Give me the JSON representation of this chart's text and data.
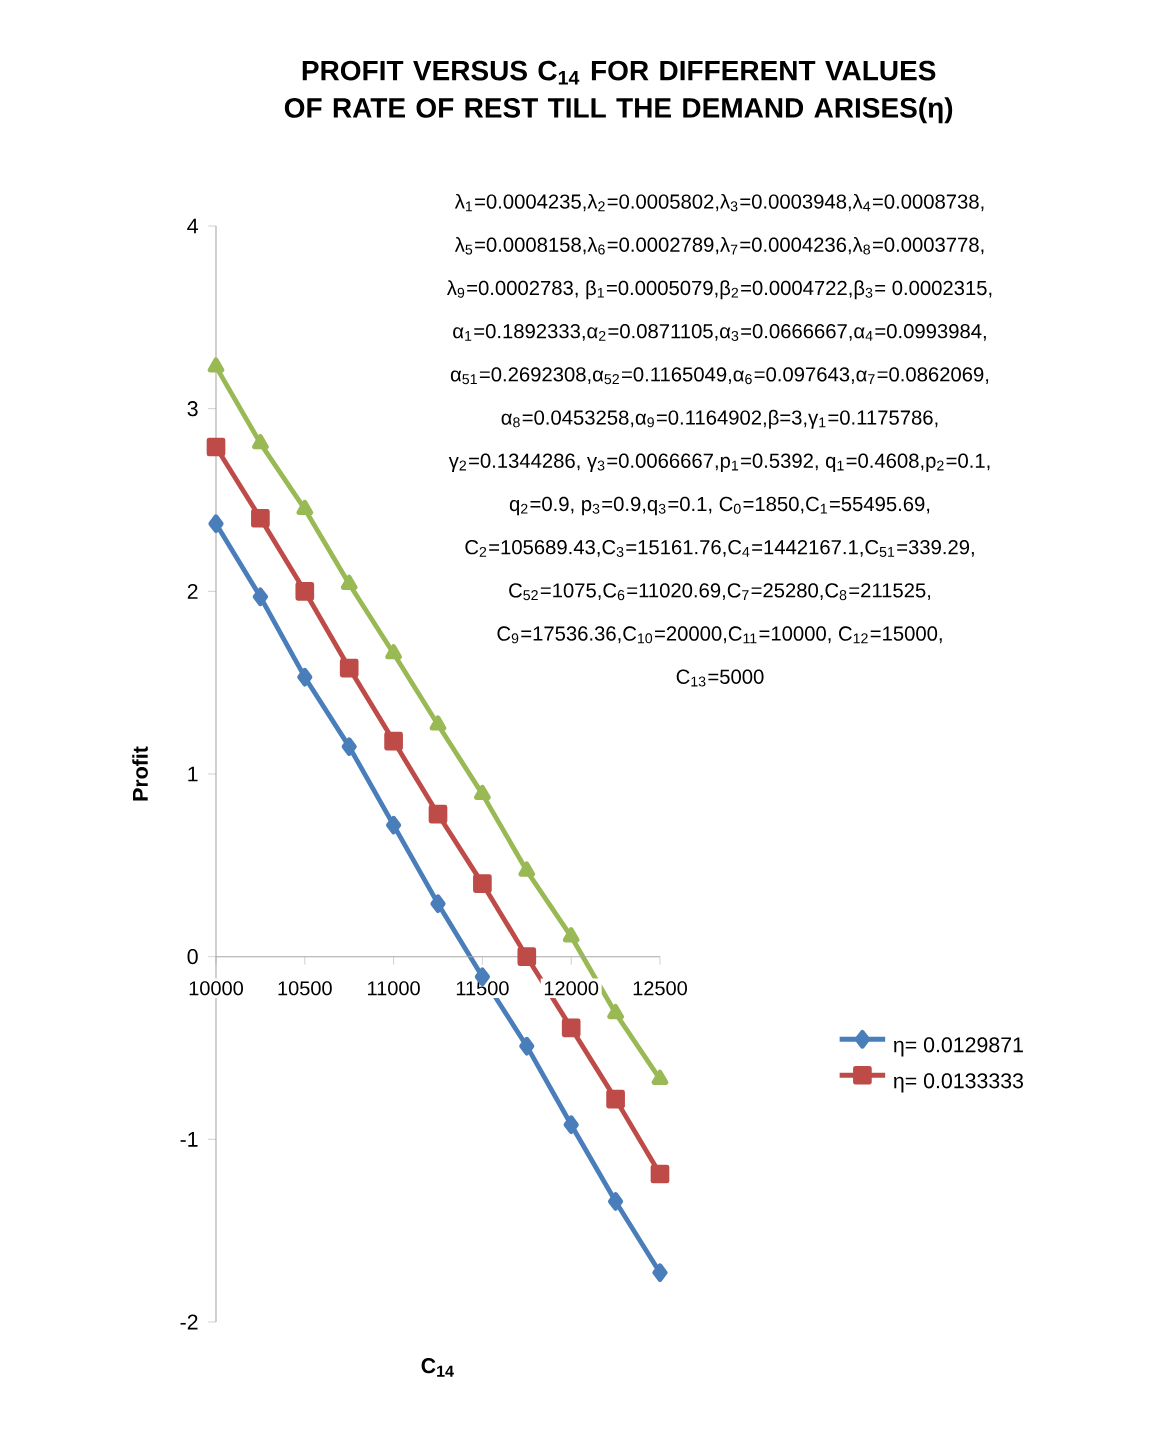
{
  "chart_data": {
    "type": "line",
    "title": "PROFIT VERSUS C$_{14}$ FOR DIFFERENT VALUES OF RATE OF REST TILL THE DEMAND ARISES(η)",
    "xlabel": "C$_{14}$",
    "ylabel": "Profit",
    "x": [
      10000,
      10250,
      10500,
      10750,
      11000,
      11250,
      11500,
      11750,
      12000,
      12250,
      12500
    ],
    "xlim": [
      10000,
      12500
    ],
    "xticks": [
      10000,
      10500,
      11000,
      11500,
      12000,
      12500
    ],
    "ylim": [
      -2,
      4
    ],
    "yticks": [
      -2,
      -1,
      0,
      1,
      2,
      3,
      4
    ],
    "legend": "right",
    "series": [
      {
        "name": "η= 0.0129871",
        "color": "#4a7ebb",
        "marker": "diamond",
        "values": [
          2.37,
          1.97,
          1.53,
          1.15,
          0.72,
          0.29,
          -0.11,
          -0.49,
          -0.92,
          -1.34,
          -1.73
        ]
      },
      {
        "name": "η= 0.0133333",
        "color": "#be4b48",
        "marker": "square",
        "values": [
          2.79,
          2.4,
          2.0,
          1.58,
          1.18,
          0.78,
          0.4,
          0.0,
          -0.39,
          -0.78,
          -1.19
        ]
      },
      {
        "color": "#98b954",
        "marker": "triangle",
        "values": [
          3.23,
          2.81,
          2.45,
          2.04,
          1.66,
          1.27,
          0.89,
          0.47,
          0.11,
          -0.31,
          -0.67
        ]
      }
    ],
    "annotations": [
      "λ$_{1}$=0.0004235,λ$_{2}$=0.0005802,λ$_{3}$=0.0003948,λ$_{4}$=0.0008738,",
      "λ$_{5}$=0.0008158,λ$_{6}$=0.0002789,λ$_{7}$=0.0004236,λ$_{8}$=0.0003778,",
      "λ$_{9}$=0.0002783, β$_{1}$=0.0005079,β$_{2}$=0.0004722,β$_{3}$= 0.0002315,",
      "α$_{1}$=0.1892333,α$_{2}$=0.0871105,α$_{3}$=0.0666667,α$_{4}$=0.0993984,",
      "α$_{51}$=0.2692308,α$_{52}$=0.1165049,α$_{6}$=0.097643,α$_{7}$=0.0862069,",
      "α$_{8}$=0.0453258,α$_{9}$=0.1164902,β=3,γ$_{1}$=0.1175786,",
      "γ$_{2}$=0.1344286, γ$_{3}$=0.0066667,p$_{1}$=0.5392, q$_{1}$=0.4608,p$_{2}$=0.1,",
      "q$_{2}$=0.9, p$_{3}$=0.9,q$_{3}$=0.1, C$_{0}$=1850,C$_{1}$=55495.69,",
      "C$_{2}$=105689.43,C$_{3}$=15161.76,C$_{4}$=1442167.1,C$_{51}$=339.29,",
      "C$_{52}$=1075,C$_{6}$=11020.69,C$_{7}$=25280,C$_{8}$=211525,",
      "C$_{9}$=17536.36,C$_{10}$=20000,C$_{11}$=10000, C$_{12}$=15000,",
      "C$_{13}$=5000"
    ]
  }
}
